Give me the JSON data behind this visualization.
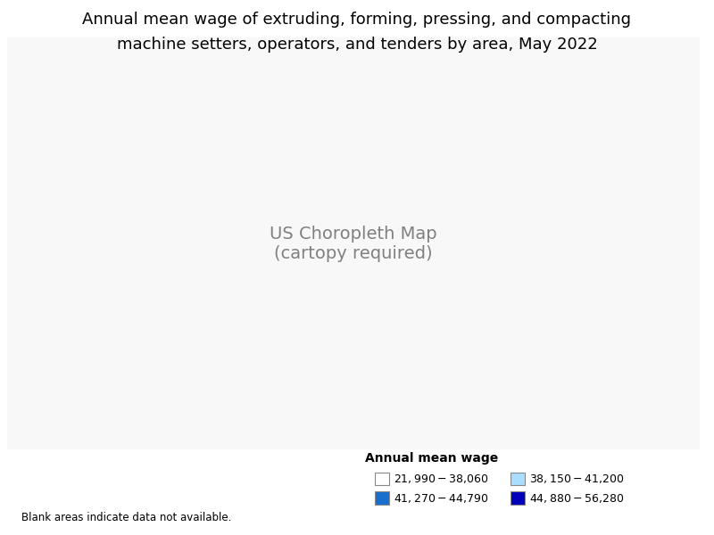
{
  "title_line1": "Annual mean wage of extruding, forming, pressing, and compacting",
  "title_line2": "machine setters, operators, and tenders by area, May 2022",
  "legend_title": "Annual mean wage",
  "legend_col1": [
    {
      "label": "$21,990 - $38,060",
      "color": "#ffffff",
      "edge": "#888888"
    },
    {
      "label": "$41,270 - $44,790",
      "color": "#1a6fce",
      "edge": "#888888"
    }
  ],
  "legend_col2": [
    {
      "label": "$38,150 - $41,200",
      "color": "#aaddff",
      "edge": "#888888"
    },
    {
      "label": "$44,880 - $56,280",
      "color": "#0000bb",
      "edge": "#888888"
    }
  ],
  "blank_note": "Blank areas indicate data not available.",
  "bg_color": "#ffffff",
  "title_fontsize": 13,
  "legend_fontsize": 9,
  "legend_title_fontsize": 10,
  "wage_colors": [
    "#ffffff",
    "#aaddff",
    "#1a6fce",
    "#0000bb"
  ],
  "color_weights": [
    0.2,
    0.18,
    0.28,
    0.34
  ]
}
